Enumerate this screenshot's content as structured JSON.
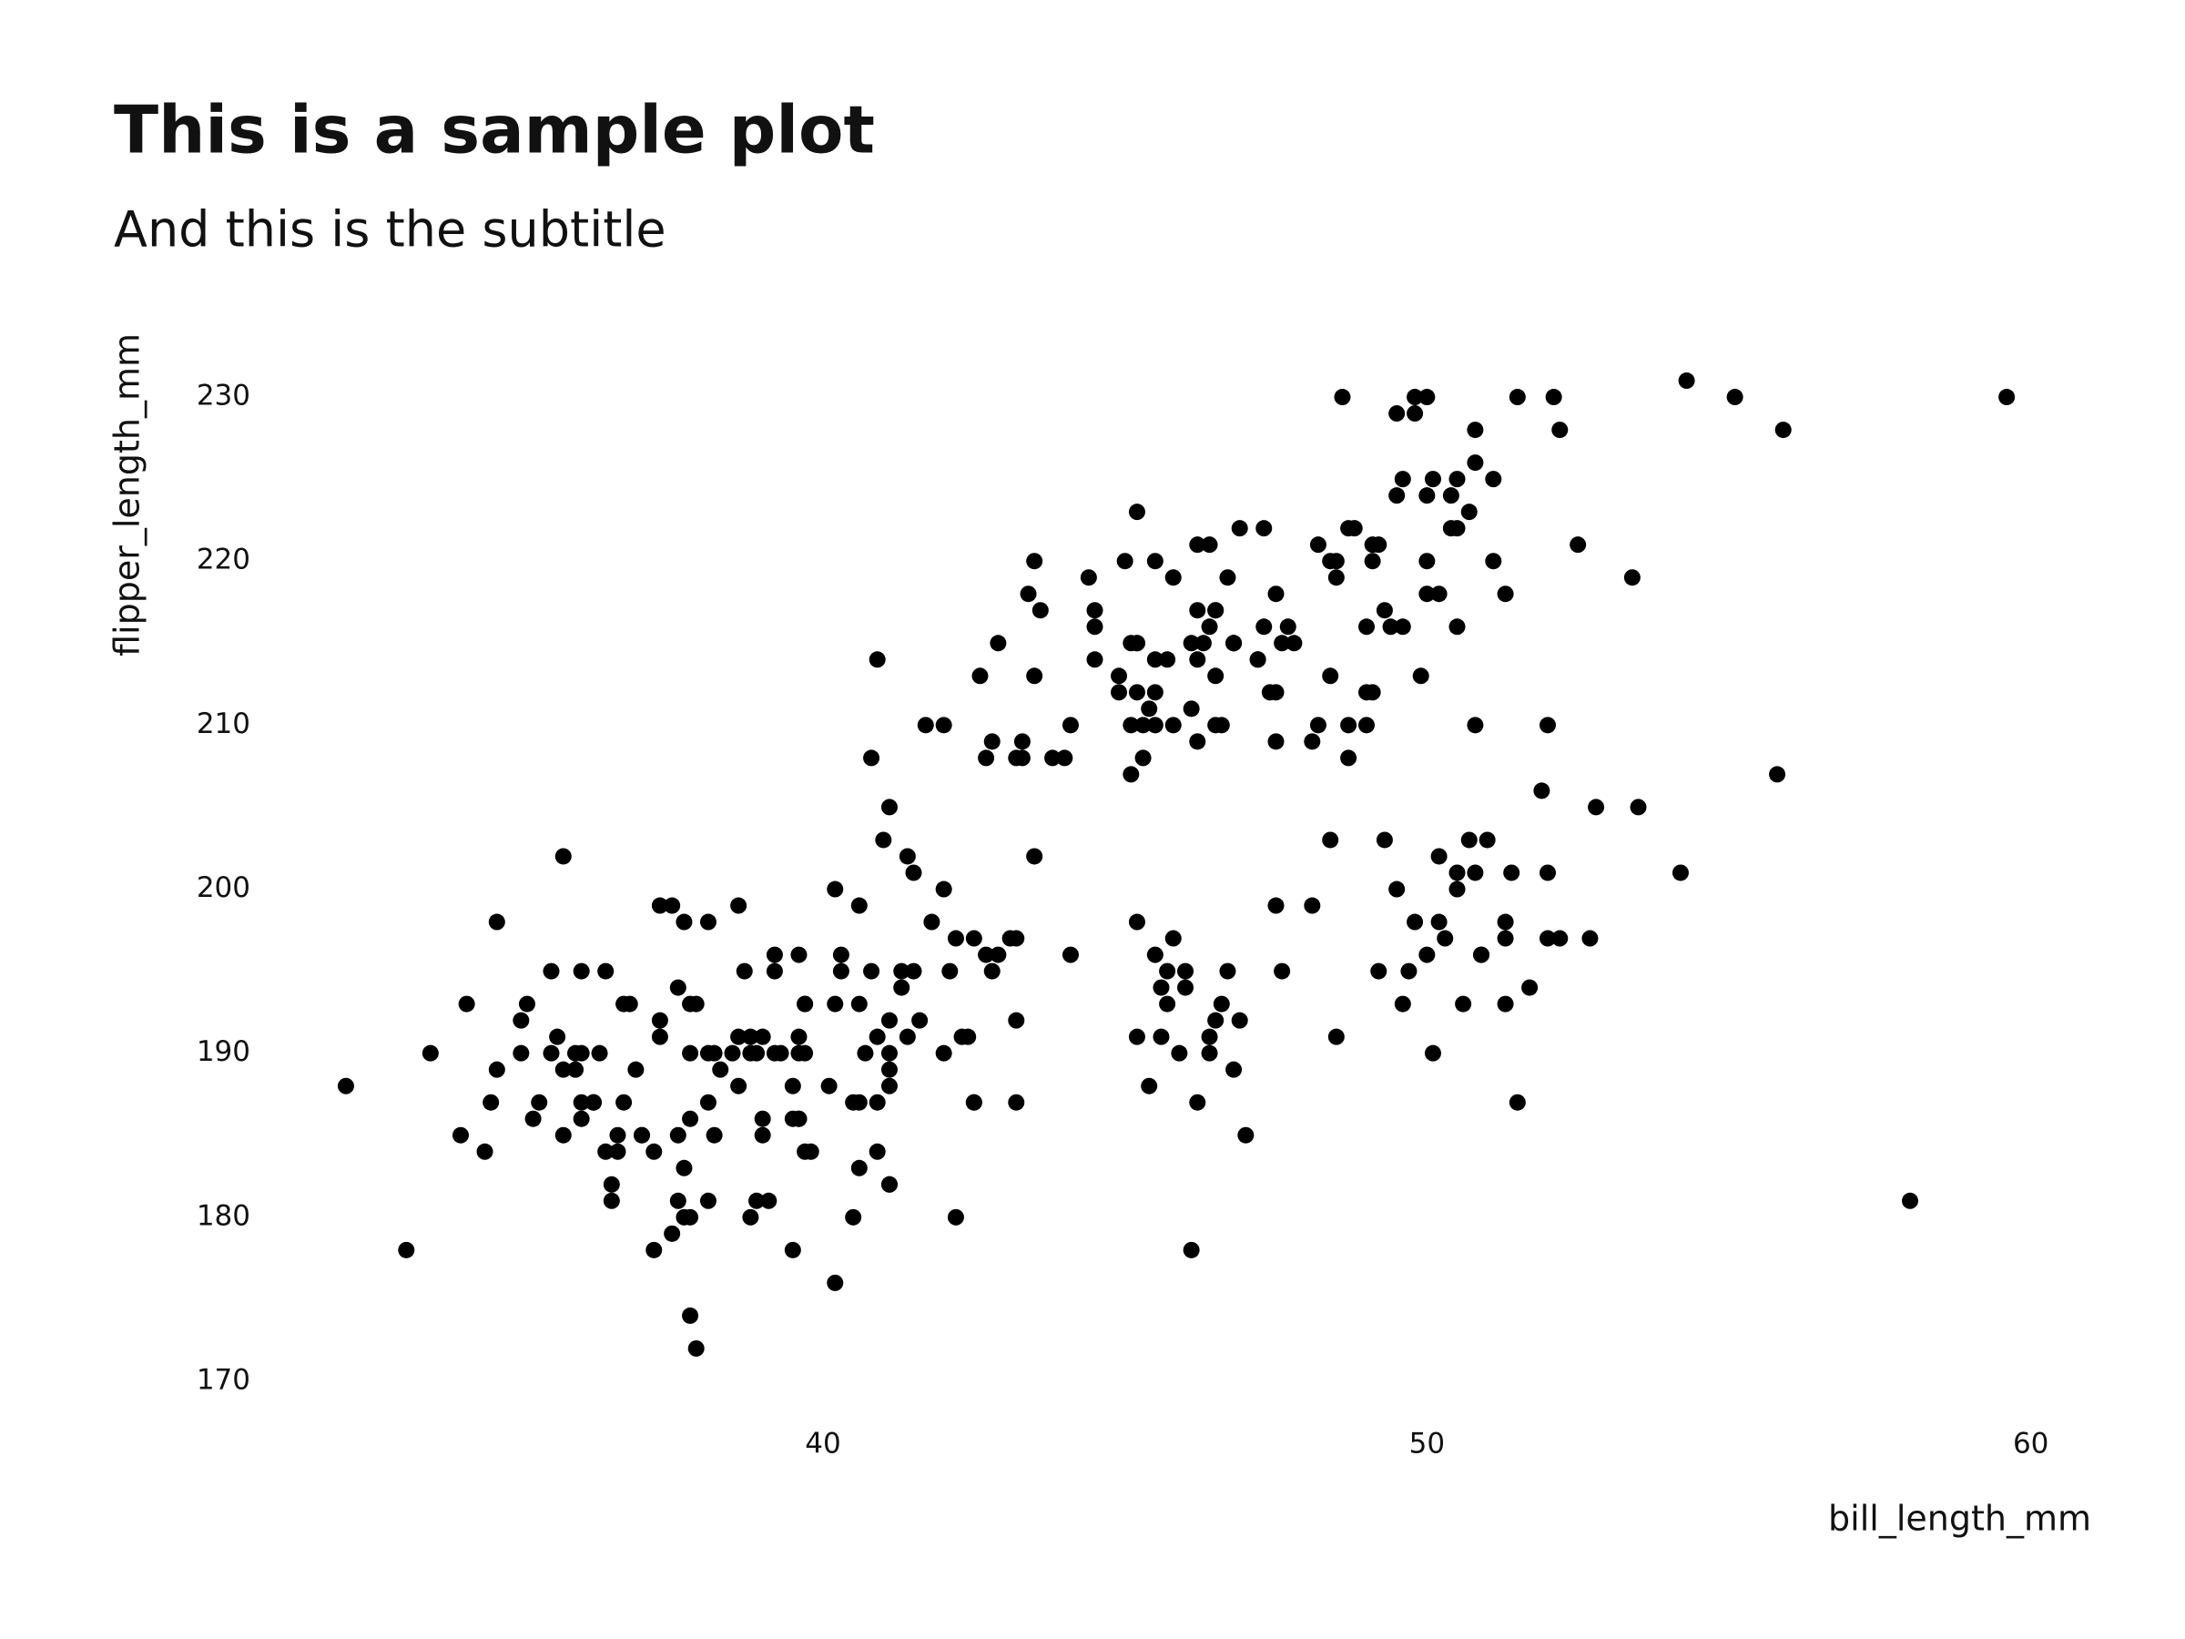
{
  "chart_data": {
    "type": "scatter",
    "title": "This is a sample plot",
    "subtitle": "And this is the subtitle",
    "x_label": "bill_length_mm",
    "y_label": "flipper_length_mm",
    "color": "#000000",
    "grid": false,
    "xlim": [
      31,
      61
    ],
    "ylim": [
      168,
      233
    ],
    "xticks": [
      40,
      50,
      60
    ],
    "yticks": [
      170,
      180,
      190,
      200,
      210,
      220,
      230
    ],
    "x": [
      39.1,
      39.5,
      40.3,
      36.7,
      39.3,
      38.9,
      39.2,
      34.1,
      42,
      37.8,
      37.8,
      41.1,
      38.6,
      34.6,
      36.6,
      38.7,
      42.5,
      34.4,
      46,
      37.8,
      37.7,
      35.9,
      38.2,
      38.8,
      35.3,
      40.6,
      40.5,
      37.9,
      40.5,
      39.5,
      37.2,
      39.5,
      40.9,
      36.4,
      39.2,
      38.8,
      42.2,
      37.6,
      39.8,
      36.5,
      40.8,
      36,
      44.1,
      37,
      39.6,
      41.1,
      37.5,
      36,
      42.3,
      39.6,
      40.1,
      35,
      42,
      34.5,
      41.4,
      39,
      40.6,
      36.5,
      37.6,
      35.7,
      41.3,
      37.6,
      41.1,
      36.4,
      41.6,
      35.5,
      41.1,
      35.9,
      41.8,
      33.5,
      39.7,
      39.6,
      45.8,
      35.5,
      42.8,
      40.9,
      37.2,
      36.2,
      42.1,
      34.6,
      42.9,
      36.7,
      35.1,
      37.3,
      41.3,
      36.3,
      36.9,
      38.3,
      38.9,
      35.7,
      41.1,
      34,
      39.6,
      36.2,
      40.8,
      38.1,
      40.3,
      33.1,
      43.2,
      35,
      41,
      37.7,
      37.8,
      37.9,
      39.7,
      38.6,
      38.2,
      38.1,
      43.2,
      38.1,
      45.6,
      39.7,
      42.2,
      39.6,
      42.7,
      38.6,
      37.3,
      35.7,
      41.1,
      36.2,
      37.7,
      40.2,
      41.4,
      35.2,
      40.6,
      38.8,
      41.5,
      39,
      44.1,
      38.5,
      43.1,
      36.8,
      37.5,
      38.1,
      41.1,
      35.6,
      40.2,
      37,
      39.7,
      40.2,
      40.6,
      32.1,
      40.7,
      37.3,
      39,
      39.2,
      36.6,
      36,
      37.8,
      36,
      41.5,
      46.1,
      50,
      48.7,
      50,
      47.6,
      46.5,
      45.4,
      46.7,
      43.3,
      46.8,
      40.9,
      49,
      45.5,
      48.4,
      45.8,
      49.3,
      42,
      49.2,
      46.2,
      48.7,
      50.2,
      45.1,
      46.5,
      46.3,
      42.9,
      46.1,
      44.5,
      47.8,
      48.2,
      50,
      47.3,
      42.8,
      45.1,
      59.6,
      49.1,
      48.4,
      42.6,
      44.4,
      44,
      48.7,
      42.7,
      49.6,
      45.3,
      49.6,
      50.5,
      43.6,
      45.5,
      50.5,
      44.9,
      45.2,
      46.6,
      48.5,
      45.1,
      50.1,
      46.5,
      45,
      43.8,
      45.5,
      43.2,
      50.4,
      45.3,
      46.2,
      45.7,
      54.3,
      45.8,
      49.8,
      46.2,
      49.5,
      43.5,
      50.7,
      47.7,
      46.4,
      48.2,
      46.5,
      46.4,
      48.6,
      47.5,
      51.1,
      45.2,
      45.2,
      49.1,
      52.5,
      47.4,
      50,
      44.9,
      50.8,
      43.4,
      51.3,
      47.5,
      52.1,
      47.5,
      52.2,
      45.5,
      49.5,
      44.5,
      50.8,
      49.4,
      46.9,
      48.4,
      51.1,
      48.5,
      55.9,
      47.2,
      49.1,
      47.3,
      46.8,
      41.7,
      53.4,
      43.3,
      48.1,
      50.5,
      49.8,
      43.5,
      51.5,
      46.2,
      55.1,
      44.5,
      48.8,
      47.2,
      46.8,
      50.4,
      45.2,
      49.9,
      46.5,
      50,
      51.3,
      45.4,
      52.7,
      45.2,
      46.1,
      51.3,
      46,
      51.3,
      46.6,
      51.7,
      47,
      52,
      45.9,
      50.5,
      50.3,
      58,
      46.4,
      49.2,
      42.4,
      48.5,
      43.2,
      50.6,
      46.7,
      52,
      50.5,
      49.5,
      46.4,
      52.8,
      40.9,
      54.2,
      42.5,
      51,
      49.7,
      47.5,
      47.6,
      52,
      46.9,
      53.5,
      49,
      46.2,
      50.9,
      45.5,
      50.9,
      50.8,
      50.1,
      49,
      51.5,
      49.8,
      48.1,
      51.4,
      45.7,
      50.7,
      42.5,
      52.2,
      45.2,
      49.3,
      50.2,
      45.6,
      51.9,
      46.8,
      45.7,
      55.8,
      43.5,
      49.6,
      50.8,
      50.2
    ],
    "values": [
      181,
      186,
      195,
      193,
      190,
      181,
      195,
      193,
      190,
      186,
      180,
      182,
      191,
      198,
      185,
      195,
      197,
      184,
      194,
      174,
      180,
      189,
      185,
      180,
      187,
      183,
      187,
      172,
      180,
      178,
      178,
      188,
      184,
      195,
      196,
      190,
      180,
      181,
      184,
      182,
      195,
      186,
      196,
      185,
      190,
      182,
      179,
      190,
      191,
      186,
      188,
      190,
      200,
      187,
      191,
      186,
      193,
      181,
      194,
      185,
      195,
      185,
      192,
      184,
      192,
      195,
      188,
      190,
      198,
      190,
      190,
      196,
      197,
      190,
      195,
      191,
      184,
      187,
      195,
      189,
      196,
      187,
      193,
      191,
      194,
      190,
      189,
      189,
      190,
      202,
      205,
      185,
      186,
      187,
      208,
      190,
      196,
      178,
      192,
      192,
      203,
      183,
      190,
      193,
      184,
      199,
      190,
      181,
      197,
      198,
      191,
      193,
      197,
      191,
      196,
      188,
      199,
      189,
      189,
      187,
      198,
      176,
      202,
      186,
      199,
      191,
      195,
      191,
      210,
      190,
      197,
      193,
      199,
      187,
      190,
      191,
      200,
      185,
      193,
      193,
      187,
      188,
      190,
      192,
      185,
      190,
      184,
      195,
      193,
      187,
      201,
      211,
      230,
      210,
      218,
      215,
      210,
      211,
      219,
      209,
      215,
      214,
      216,
      214,
      213,
      210,
      217,
      210,
      221,
      209,
      222,
      218,
      215,
      213,
      215,
      215,
      215,
      216,
      215,
      210,
      220,
      222,
      209,
      207,
      230,
      220,
      220,
      213,
      219,
      208,
      208,
      208,
      225,
      210,
      216,
      222,
      217,
      210,
      225,
      213,
      215,
      210,
      220,
      210,
      225,
      217,
      220,
      208,
      220,
      208,
      224,
      208,
      221,
      214,
      231,
      219,
      230,
      214,
      229,
      220,
      223,
      216,
      221,
      221,
      217,
      216,
      230,
      209,
      220,
      215,
      223,
      212,
      221,
      212,
      224,
      212,
      228,
      218,
      218,
      212,
      230,
      218,
      228,
      212,
      224,
      214,
      226,
      216,
      222,
      203,
      225,
      219,
      228,
      214,
      221,
      216,
      215,
      210,
      219,
      208,
      209,
      216,
      229,
      213,
      230,
      217,
      230,
      217,
      222,
      214,
      215,
      222,
      212,
      213,
      192,
      196,
      193,
      188,
      197,
      198,
      178,
      197,
      195,
      198,
      193,
      194,
      185,
      201,
      190,
      201,
      197,
      181,
      190,
      195,
      191,
      191,
      187,
      193,
      195,
      197,
      200,
      200,
      191,
      205,
      187,
      201,
      187,
      203,
      195,
      199,
      195,
      210,
      192,
      205,
      210,
      187,
      196,
      196,
      196,
      201,
      190,
      212,
      187,
      198,
      199,
      201,
      193,
      203,
      187,
      197,
      191,
      203,
      202,
      194,
      206,
      189,
      195,
      207,
      202,
      193,
      210,
      198
    ]
  }
}
